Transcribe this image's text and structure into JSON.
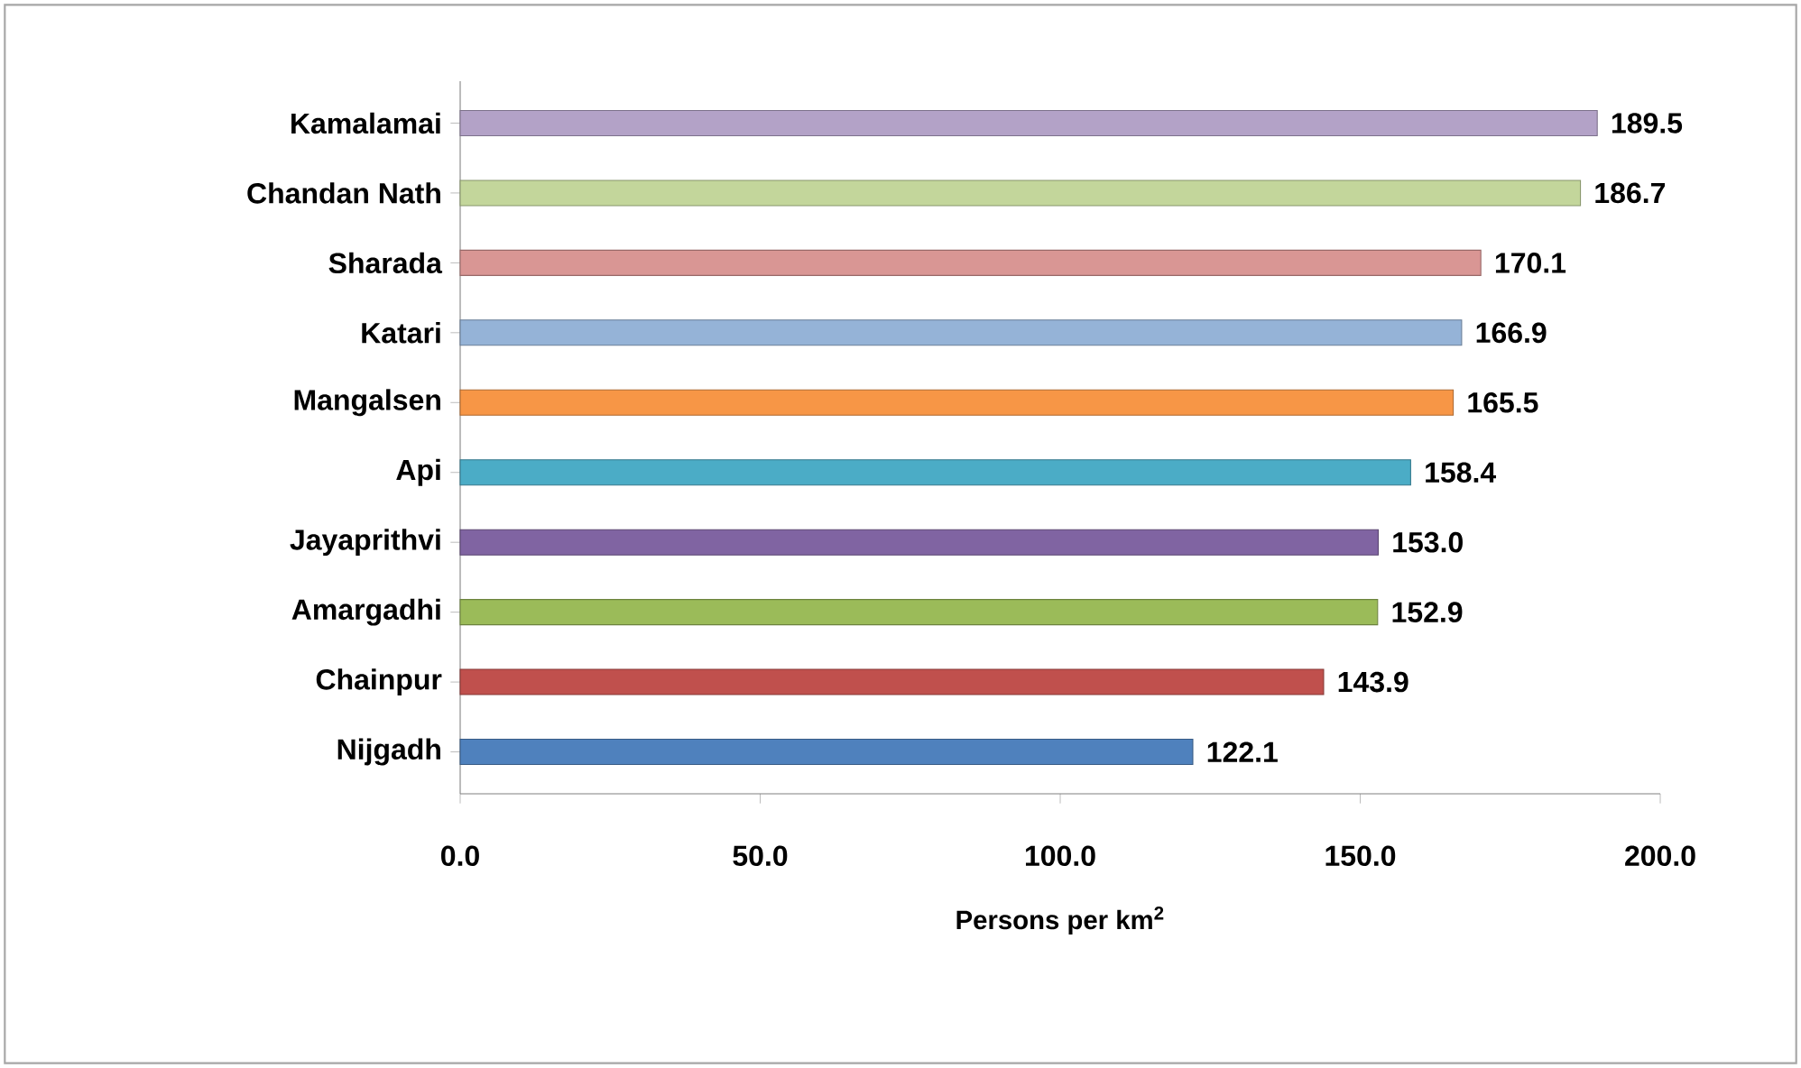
{
  "chart_data": {
    "type": "bar",
    "orientation": "horizontal",
    "xlabel": "Persons per km$^{2}$",
    "categories": [
      "Kamalamai",
      "Chandan Nath",
      "Sharada",
      "Katari",
      "Mangalsen",
      "Api",
      "Jayaprithvi",
      "Amargadhi",
      "Chainpur",
      "Nijgadh"
    ],
    "values": [
      189.5,
      186.7,
      170.1,
      166.9,
      165.5,
      158.4,
      153.0,
      152.9,
      143.9,
      122.1
    ],
    "value_labels": [
      "189.5",
      "186.7",
      "170.1",
      "166.9",
      "165.5",
      "158.4",
      "153.0",
      "152.9",
      "143.9",
      "122.1"
    ],
    "colors": [
      "#b3a2c7",
      "#c3d69b",
      "#d99694",
      "#95b3d7",
      "#f79646",
      "#4bacc6",
      "#8064a2",
      "#9bbb59",
      "#c0504d",
      "#4f81bd"
    ],
    "xlim": [
      0,
      200
    ],
    "xticks": [
      {
        "value": 0,
        "label": "0.0"
      },
      {
        "value": 50,
        "label": "50.0"
      },
      {
        "value": 100,
        "label": "100.0"
      },
      {
        "value": 150,
        "label": "150.0"
      },
      {
        "value": 200,
        "label": "200.0"
      }
    ]
  }
}
